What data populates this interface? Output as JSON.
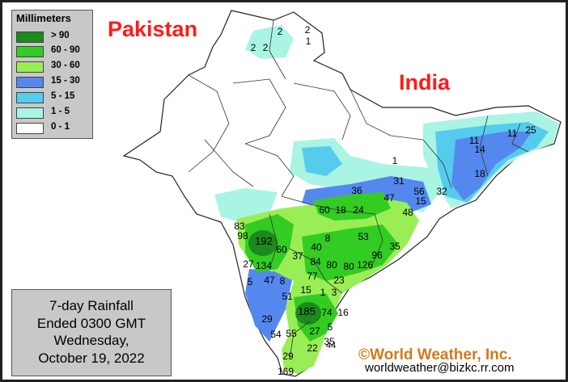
{
  "map": {
    "labels": {
      "pakistan": "Pakistan",
      "india": "India"
    },
    "legend": {
      "title": "Millimeters",
      "items": [
        {
          "label": "> 90",
          "color": "#1c8a1c"
        },
        {
          "label": "60 - 90",
          "color": "#33cc22"
        },
        {
          "label": "30 - 60",
          "color": "#99ee55"
        },
        {
          "label": "15 - 30",
          "color": "#5588ee"
        },
        {
          "label": "5 - 15",
          "color": "#55ccee"
        },
        {
          "label": "1 - 5",
          "color": "#aaf4e4"
        },
        {
          "label": "0 - 1",
          "color": "#ffffff"
        }
      ]
    },
    "info": {
      "line1": "7-day Rainfall",
      "line2": "Ended 0300 GMT",
      "line3": "Wednesday,",
      "line4": "October 19, 2022"
    },
    "credit": "©World Weather, Inc.",
    "email": "worldweather@bizkc.rr.com",
    "station_values": [
      "2",
      "2",
      "2",
      "2",
      "1",
      "11",
      "25",
      "11",
      "14",
      "18",
      "32",
      "56",
      "31",
      "47",
      "36",
      "48",
      "15",
      "1",
      "60",
      "18",
      "24",
      "83",
      "98",
      "192",
      "60",
      "8",
      "53",
      "35",
      "96",
      "27",
      "134",
      "37",
      "40",
      "84",
      "80",
      "80",
      "126",
      "77",
      "23",
      "5",
      "47",
      "8",
      "51",
      "1",
      "3",
      "15",
      "29",
      "185",
      "74",
      "16",
      "27",
      "5",
      "54",
      "55",
      "35",
      "44",
      "22",
      "29",
      "169"
    ]
  }
}
